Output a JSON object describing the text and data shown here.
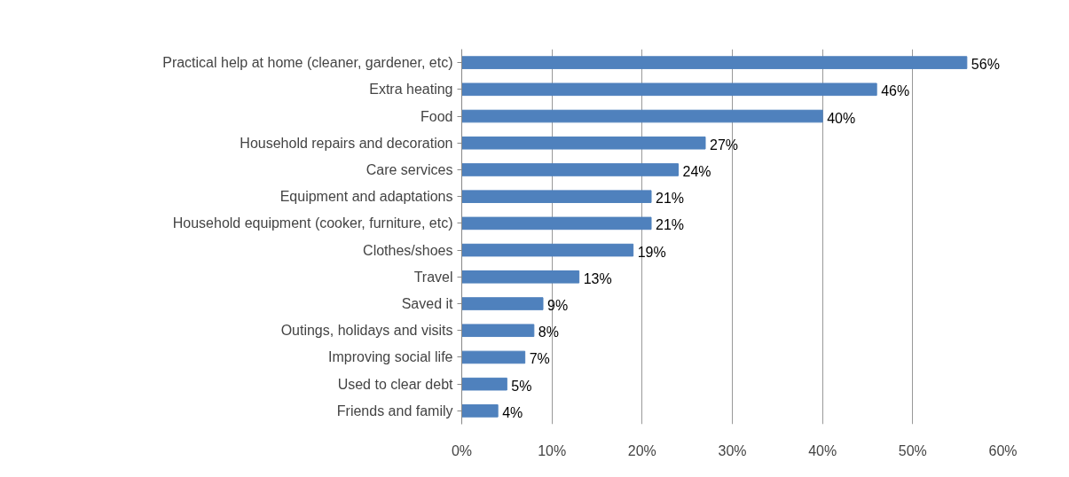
{
  "chart_data": {
    "type": "bar",
    "orientation": "horizontal",
    "categories": [
      "Practical help at home (cleaner, gardener, etc)",
      "Extra heating",
      "Food",
      "Household repairs and decoration",
      "Care services",
      "Equipment and adaptations",
      "Household equipment (cooker, furniture, etc)",
      "Clothes/shoes",
      "Travel",
      "Saved it",
      "Outings, holidays and visits",
      "Improving social life",
      "Used to clear debt",
      "Friends and family"
    ],
    "values": [
      56,
      46,
      40,
      27,
      24,
      21,
      21,
      19,
      13,
      9,
      8,
      7,
      5,
      4
    ],
    "value_labels": [
      "56%",
      "46%",
      "40%",
      "27%",
      "24%",
      "21%",
      "21%",
      "19%",
      "13%",
      "9%",
      "8%",
      "7%",
      "5%",
      "4%"
    ],
    "color": "#4f81bd",
    "xlim": [
      0,
      60
    ],
    "xticks": [
      {
        "value": 0,
        "label": "0%"
      },
      {
        "value": 10,
        "label": "10%"
      },
      {
        "value": 20,
        "label": "20%"
      },
      {
        "value": 30,
        "label": "30%"
      },
      {
        "value": 40,
        "label": "40%"
      },
      {
        "value": 50,
        "label": "50%"
      },
      {
        "value": 60,
        "label": "60%"
      }
    ],
    "grid": "x"
  }
}
